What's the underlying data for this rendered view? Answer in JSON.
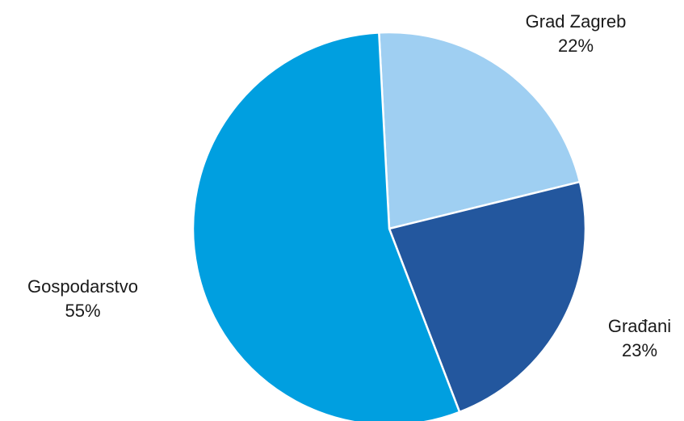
{
  "chart_data": {
    "type": "pie",
    "title": "",
    "start_angle_deg": -3,
    "direction": "clockwise",
    "slices": [
      {
        "label": "Grad Zagreb",
        "value": 22,
        "value_label": "22%",
        "color": "#9FCFF2"
      },
      {
        "label": "Građani",
        "value": 23,
        "value_label": "23%",
        "color": "#23579E"
      },
      {
        "label": "Gospodarstvo",
        "value": 55,
        "value_label": "55%",
        "color": "#009FE0"
      }
    ]
  }
}
